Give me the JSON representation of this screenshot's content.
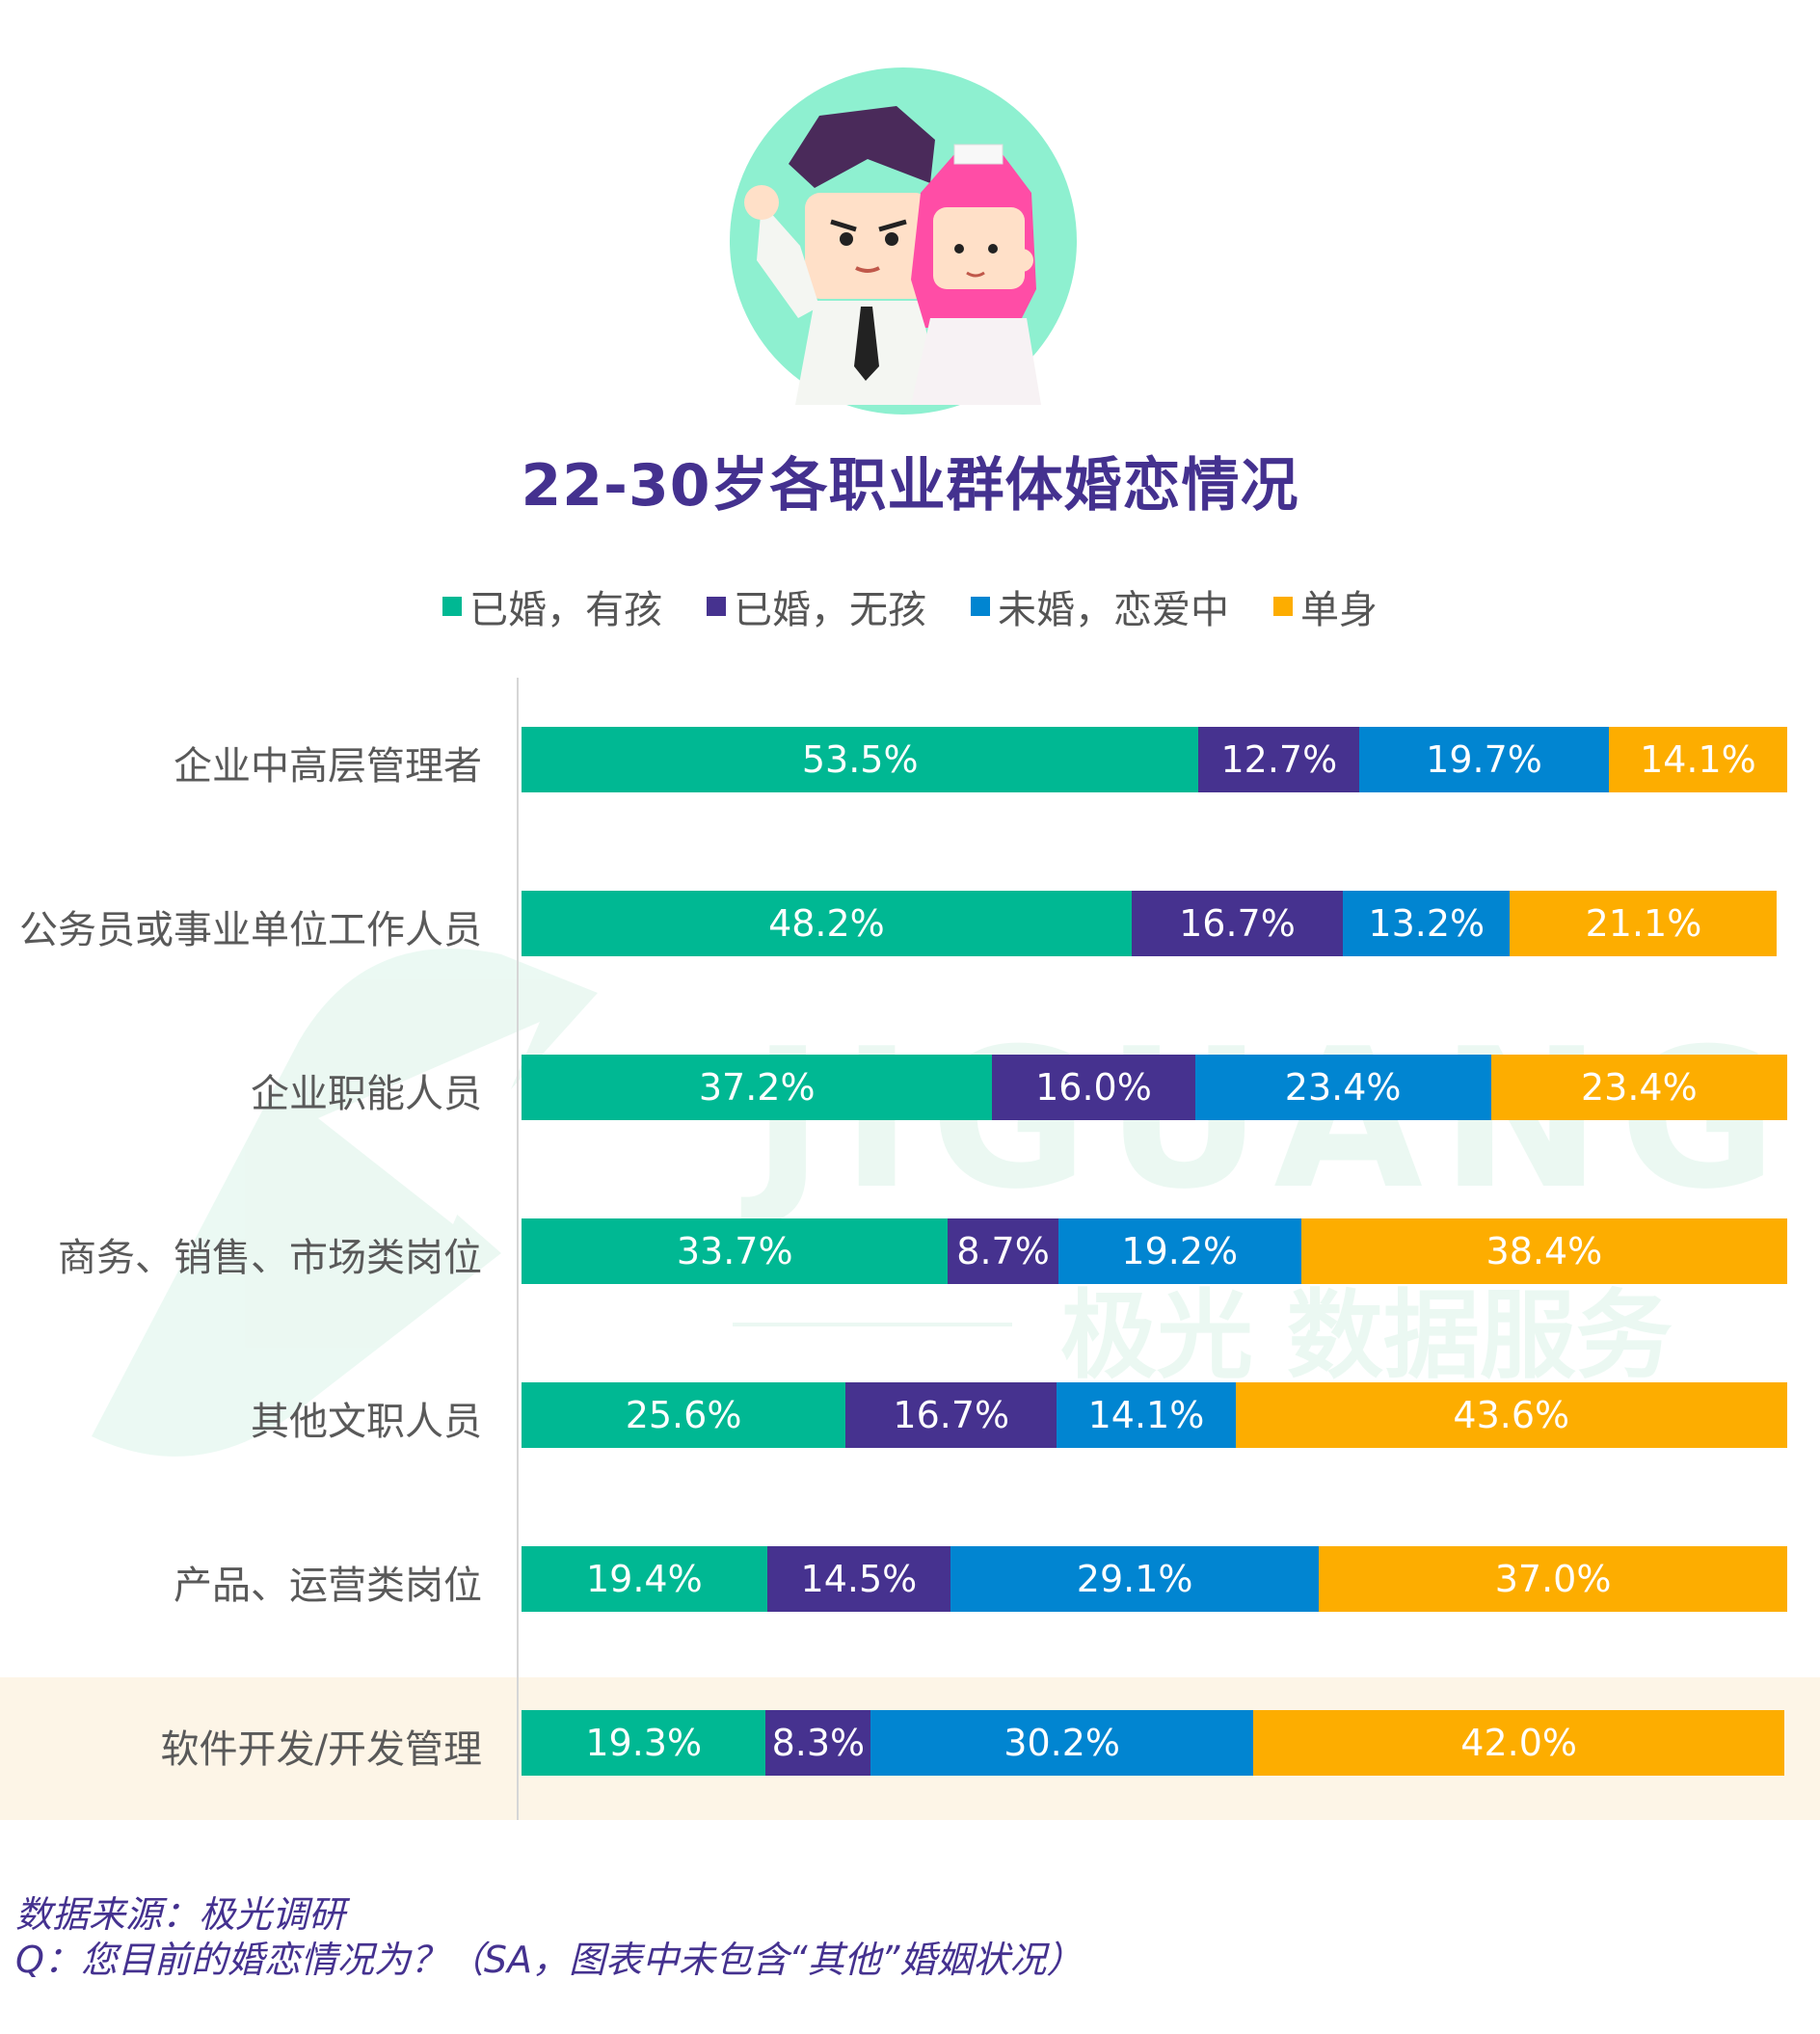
{
  "chart_data": {
    "type": "bar",
    "orientation": "horizontal",
    "stacked": true,
    "title": "22-30岁各职业群体婚恋情况",
    "categories": [
      "企业中高层管理者",
      "公务员或事业单位工作人员",
      "企业职能人员",
      "商务、销售、市场类岗位",
      "其他文职人员",
      "产品、运营类岗位",
      "软件开发/开发管理"
    ],
    "series": [
      {
        "name": "已婚，有孩",
        "color": "#00b893",
        "values": [
          53.5,
          48.2,
          37.2,
          33.7,
          25.6,
          19.4,
          19.3
        ]
      },
      {
        "name": "已婚，无孩",
        "color": "#46328f",
        "values": [
          12.7,
          16.7,
          16.0,
          8.7,
          16.7,
          14.5,
          8.3
        ]
      },
      {
        "name": "未婚，恋爱中",
        "color": "#0185d1",
        "values": [
          19.7,
          13.2,
          23.4,
          19.2,
          14.1,
          29.1,
          30.2
        ]
      },
      {
        "name": "单身",
        "color": "#fdad00",
        "values": [
          14.1,
          21.1,
          23.4,
          38.4,
          43.6,
          37.0,
          42.0
        ]
      }
    ],
    "value_suffix": "%",
    "highlighted_category": "软件开发/开发管理",
    "xlim": [
      0,
      100
    ],
    "legend_position": "top"
  },
  "watermark": {
    "brand": "JIGUANG",
    "tagline": "极光 数据服务"
  },
  "footnotes": {
    "source": "数据来源：极光调研",
    "question": "Q：您目前的婚恋情况为？（SA，图表中未包含“其他”婚姻状况）"
  }
}
